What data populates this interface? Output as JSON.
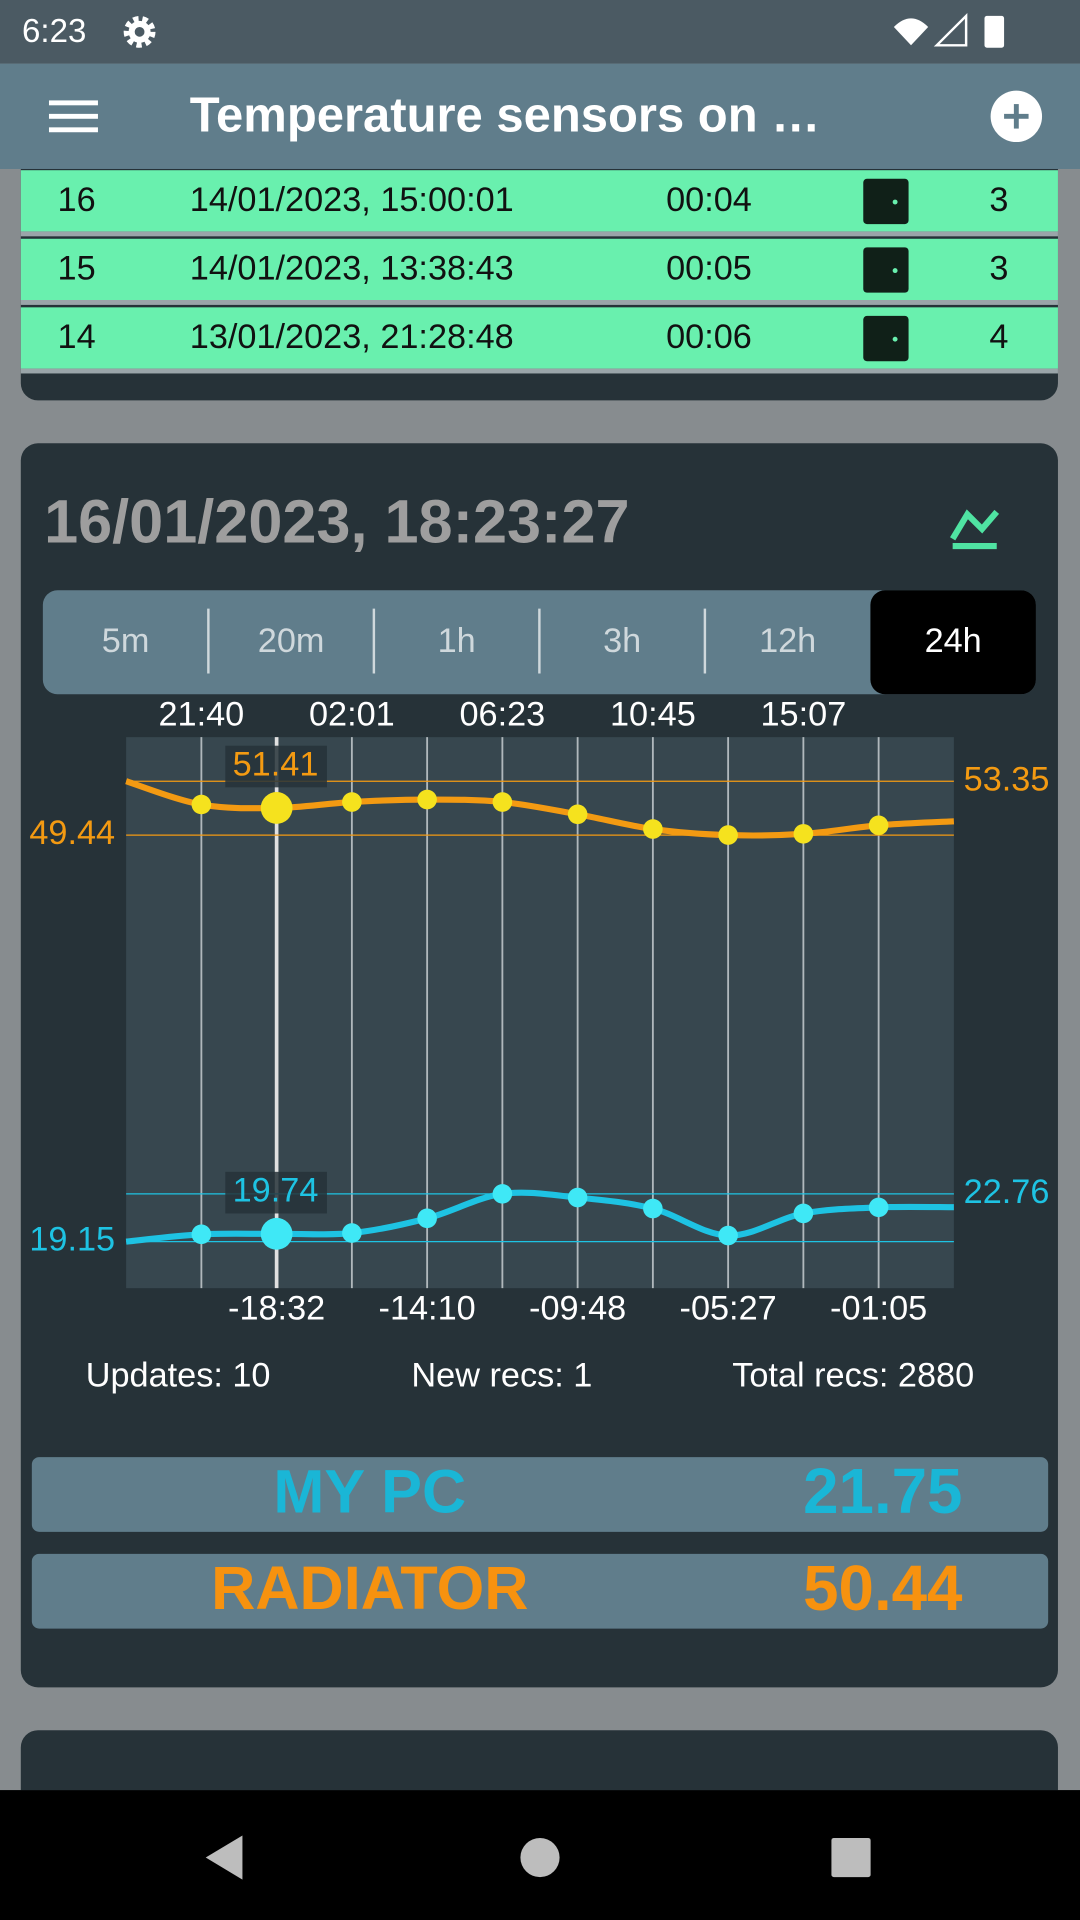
{
  "status_bar": {
    "time": "6:23"
  },
  "app_bar": {
    "title": "Temperature sensors on …"
  },
  "table": {
    "rows": [
      [
        16,
        "14/01/2023, 15:00:01",
        "00:04",
        3
      ],
      [
        15,
        "14/01/2023, 13:38:43",
        "00:05",
        3
      ],
      [
        14,
        "13/01/2023, 21:28:48",
        "00:06",
        4
      ]
    ]
  },
  "card": {
    "timestamp": "16/01/2023, 18:23:27",
    "ranges": [
      "5m",
      "20m",
      "1h",
      "3h",
      "12h",
      "24h"
    ],
    "selected_range": 5,
    "chart": {
      "type": "line",
      "top_labels": [
        null,
        "21:40",
        null,
        "02:01",
        null,
        "06:23",
        null,
        "10:45",
        null,
        "15:07",
        null,
        null
      ],
      "bottom_labels": [
        null,
        null,
        "-18:32",
        null,
        "-14:10",
        null,
        "-09:48",
        null,
        "-05:27",
        null,
        "-01:05",
        null
      ],
      "highlight": 2,
      "series": [
        {
          "color": "#f39a12",
          "marker_color": "#f5e21e",
          "min": 49.44,
          "max": 53.35,
          "values": [
            53.35,
            51.66,
            51.41,
            51.84,
            52.02,
            51.84,
            50.95,
            49.88,
            49.44,
            49.53,
            50.15,
            50.44
          ]
        },
        {
          "color": "#1ec3e3",
          "marker_color": "#3fe8f6",
          "min": 19.15,
          "max": 22.76,
          "values": [
            19.15,
            19.7,
            19.74,
            19.8,
            20.91,
            22.76,
            22.48,
            21.65,
            19.61,
            21.28,
            21.74,
            21.75
          ]
        }
      ]
    },
    "stats": [
      "Updates: 10",
      "New recs: 1",
      "Total recs: 2880"
    ],
    "sensors": [
      {
        "name": "MY PC",
        "value": 21.75,
        "color": "#1ab6d6"
      },
      {
        "name": "RADIATOR",
        "value": 50.44,
        "color": "#f7920f"
      }
    ]
  }
}
